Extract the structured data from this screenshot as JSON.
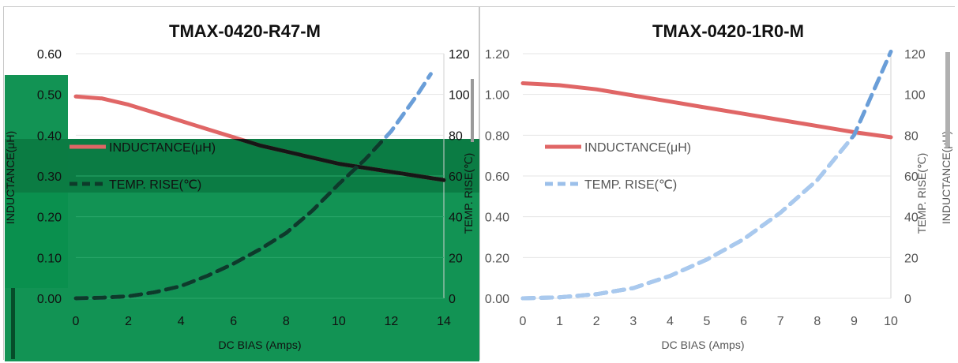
{
  "charts": [
    {
      "title": "TMAX-0420-R47-M",
      "chart_type": "line",
      "x_ticks": [
        "0",
        "2",
        "4",
        "6",
        "8",
        "10",
        "12",
        "14"
      ],
      "xlim": [
        0,
        14
      ],
      "xlabel": "DC BIAS  (Amps)",
      "y_left_ticks": [
        "0.00",
        "0.10",
        "0.20",
        "0.30",
        "0.40",
        "0.50",
        "0.60"
      ],
      "ylim_left": [
        0,
        0.6
      ],
      "ylabel_left": "INDUCTANCE(μH)",
      "y_right_ticks": [
        "0",
        "20",
        "40",
        "60",
        "80",
        "100",
        "120"
      ],
      "ylim_right": [
        0,
        120
      ],
      "ylabel_right": "TEMP. RISE(℃)",
      "legend": [
        "INDUCTANCE(μH)",
        "TEMP. RISE(℃)"
      ],
      "background_overlay_color": "#0a8f4e"
    },
    {
      "title": "TMAX-0420-1R0-M",
      "chart_type": "line",
      "x_ticks": [
        "0",
        "1",
        "2",
        "3",
        "4",
        "5",
        "6",
        "7",
        "8",
        "9",
        "10"
      ],
      "xlim": [
        0,
        10
      ],
      "xlabel": "DC BIAS  (Amps)",
      "y_left_ticks": [
        "0.00",
        "0.20",
        "0.40",
        "0.60",
        "0.80",
        "1.00",
        "1.20"
      ],
      "ylim_left": [
        0,
        1.2
      ],
      "ylabel_left": "INDUCTANCE(μH)",
      "y_right_ticks": [
        "0",
        "20",
        "40",
        "60",
        "80",
        "100",
        "120"
      ],
      "ylim_right": [
        0,
        120
      ],
      "ylabel_right": "TEMP. RISE(℃)",
      "legend": [
        "INDUCTANCE(μH)",
        "TEMP. RISE(℃)"
      ]
    }
  ],
  "chart_data": [
    {
      "type": "line",
      "title": "TMAX-0420-R47-M",
      "xlabel": "DC BIAS  (Amps)",
      "ylabel": "INDUCTANCE(μH)",
      "ylabel_right": "TEMP. RISE(℃)",
      "xlim": [
        0,
        14
      ],
      "ylim": [
        0,
        0.6
      ],
      "ylim_right": [
        0,
        120
      ],
      "series": [
        {
          "name": "INDUCTANCE(μH)",
          "axis": "left",
          "color": "#e06666",
          "x": [
            0,
            1,
            2,
            3,
            4,
            5,
            6,
            7,
            8,
            9,
            10,
            11,
            12,
            13,
            14
          ],
          "y": [
            0.495,
            0.49,
            0.475,
            0.455,
            0.435,
            0.415,
            0.395,
            0.375,
            0.36,
            0.345,
            0.33,
            0.32,
            0.31,
            0.3,
            0.29
          ]
        },
        {
          "name": "TEMP. RISE(℃)",
          "axis": "right",
          "color": "#6a9ed8",
          "dashed": true,
          "x": [
            0,
            1,
            2,
            3,
            4,
            5,
            6,
            7,
            8,
            9,
            10,
            11,
            12,
            13,
            13.5
          ],
          "y": [
            0,
            0.3,
            1,
            3,
            6,
            11,
            17,
            24,
            32,
            43,
            56,
            68,
            82,
            100,
            110
          ]
        }
      ]
    },
    {
      "type": "line",
      "title": "TMAX-0420-1R0-M",
      "xlabel": "DC BIAS  (Amps)",
      "ylabel": "INDUCTANCE(μH)",
      "ylabel_right": "TEMP. RISE(℃)",
      "xlim": [
        0,
        10
      ],
      "ylim": [
        0,
        1.2
      ],
      "ylim_right": [
        0,
        120
      ],
      "series": [
        {
          "name": "INDUCTANCE(μH)",
          "axis": "left",
          "color": "#e06666",
          "x": [
            0,
            1,
            2,
            3,
            4,
            5,
            6,
            7,
            8,
            9,
            10
          ],
          "y": [
            1.055,
            1.045,
            1.025,
            0.995,
            0.965,
            0.935,
            0.905,
            0.875,
            0.845,
            0.815,
            0.79
          ]
        },
        {
          "name": "TEMP. RISE(℃)",
          "axis": "right",
          "color": "#6a9ed8",
          "dashed": true,
          "x": [
            0,
            1,
            2,
            3,
            4,
            5,
            6,
            7,
            8,
            9,
            10
          ],
          "y": [
            0,
            0.5,
            2,
            5,
            11,
            19,
            29,
            42,
            58,
            80,
            121
          ]
        }
      ]
    }
  ]
}
